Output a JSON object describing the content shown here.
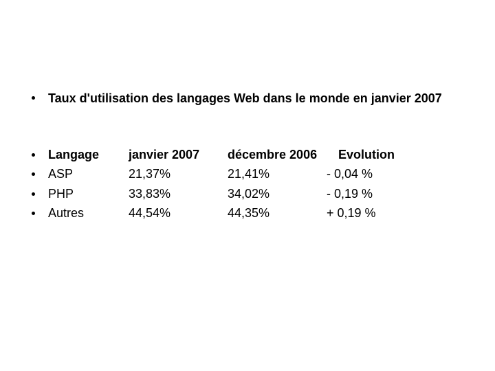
{
  "slide": {
    "title": "Taux d'utilisation des langages Web dans le monde en janvier 2007"
  },
  "table": {
    "header": {
      "langage": "Langage",
      "janvier": "janvier 2007",
      "decembre": "décembre 2006",
      "evolution": "Evolution"
    },
    "rows": [
      {
        "langage": "ASP",
        "janvier": "21,37%",
        "decembre": "21,41%",
        "evolution": "- 0,04 %"
      },
      {
        "langage": "PHP",
        "janvier": "33,83%",
        "decembre": "34,02%",
        "evolution": "- 0,19 %"
      },
      {
        "langage": "Autres",
        "janvier": "44,54%",
        "decembre": "44,35%",
        "evolution": "+ 0,19 %"
      }
    ]
  },
  "colors": {
    "text": "#000000",
    "background": "#ffffff"
  }
}
